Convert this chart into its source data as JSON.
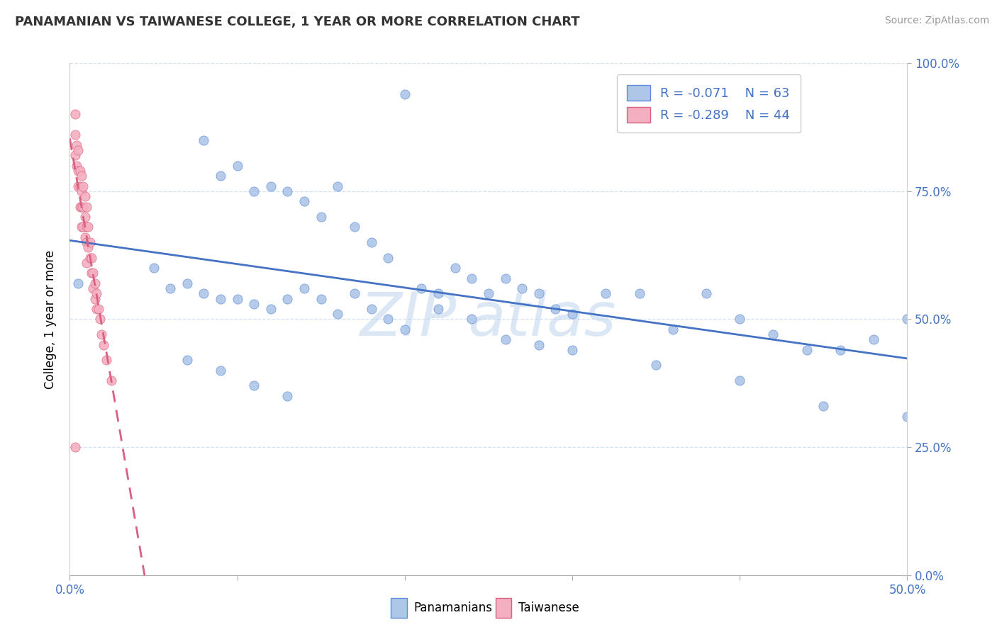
{
  "title": "PANAMANIAN VS TAIWANESE COLLEGE, 1 YEAR OR MORE CORRELATION CHART",
  "source": "Source: ZipAtlas.com",
  "ylabel": "College, 1 year or more",
  "xlim": [
    0.0,
    0.5
  ],
  "ylim": [
    0.0,
    1.0
  ],
  "xticks": [
    0.0,
    0.1,
    0.2,
    0.3,
    0.4,
    0.5
  ],
  "yticks": [
    0.0,
    0.25,
    0.5,
    0.75,
    1.0
  ],
  "color_blue_fill": "#aec6e8",
  "color_blue_edge": "#5b8dd9",
  "color_pink_fill": "#f4b0c0",
  "color_pink_edge": "#d96080",
  "line_blue": "#4472c4",
  "line_pink": "#d96080",
  "legend_R1": "R = -0.071",
  "legend_N1": "N = 63",
  "legend_R2": "R = -0.289",
  "legend_N2": "N = 44",
  "legend_label1": "Panamanians",
  "legend_label2": "Taiwanese",
  "tick_color": "#4472c4",
  "grid_color": "#c8d8f0",
  "watermark_color": "#b8d0ea",
  "pan_x": [
    0.005,
    0.08,
    0.09,
    0.1,
    0.11,
    0.12,
    0.13,
    0.14,
    0.15,
    0.16,
    0.17,
    0.18,
    0.19,
    0.2,
    0.21,
    0.22,
    0.23,
    0.24,
    0.25,
    0.26,
    0.27,
    0.28,
    0.29,
    0.3,
    0.32,
    0.34,
    0.36,
    0.38,
    0.4,
    0.42,
    0.44,
    0.46,
    0.48,
    0.5,
    0.05,
    0.06,
    0.07,
    0.08,
    0.09,
    0.1,
    0.11,
    0.12,
    0.13,
    0.14,
    0.15,
    0.16,
    0.17,
    0.18,
    0.19,
    0.2,
    0.22,
    0.24,
    0.26,
    0.28,
    0.3,
    0.35,
    0.4,
    0.45,
    0.5,
    0.07,
    0.09,
    0.11,
    0.13
  ],
  "pan_y": [
    0.57,
    0.85,
    0.78,
    0.8,
    0.75,
    0.76,
    0.75,
    0.73,
    0.7,
    0.76,
    0.68,
    0.65,
    0.62,
    0.94,
    0.56,
    0.55,
    0.6,
    0.58,
    0.55,
    0.58,
    0.56,
    0.55,
    0.52,
    0.51,
    0.55,
    0.55,
    0.48,
    0.55,
    0.5,
    0.47,
    0.44,
    0.44,
    0.46,
    0.5,
    0.6,
    0.56,
    0.57,
    0.55,
    0.54,
    0.54,
    0.53,
    0.52,
    0.54,
    0.56,
    0.54,
    0.51,
    0.55,
    0.52,
    0.5,
    0.48,
    0.52,
    0.5,
    0.46,
    0.45,
    0.44,
    0.41,
    0.38,
    0.33,
    0.31,
    0.42,
    0.4,
    0.37,
    0.35
  ],
  "tai_x": [
    0.003,
    0.003,
    0.003,
    0.004,
    0.004,
    0.005,
    0.005,
    0.005,
    0.006,
    0.006,
    0.006,
    0.007,
    0.007,
    0.007,
    0.007,
    0.008,
    0.008,
    0.008,
    0.009,
    0.009,
    0.009,
    0.01,
    0.01,
    0.01,
    0.01,
    0.011,
    0.011,
    0.012,
    0.012,
    0.013,
    0.013,
    0.014,
    0.014,
    0.015,
    0.015,
    0.016,
    0.016,
    0.017,
    0.018,
    0.019,
    0.02,
    0.022,
    0.025,
    0.003
  ],
  "tai_y": [
    0.9,
    0.86,
    0.82,
    0.84,
    0.8,
    0.83,
    0.79,
    0.76,
    0.79,
    0.76,
    0.72,
    0.78,
    0.75,
    0.72,
    0.68,
    0.76,
    0.72,
    0.68,
    0.74,
    0.7,
    0.66,
    0.72,
    0.68,
    0.65,
    0.61,
    0.68,
    0.64,
    0.65,
    0.62,
    0.62,
    0.59,
    0.59,
    0.56,
    0.57,
    0.54,
    0.55,
    0.52,
    0.52,
    0.5,
    0.47,
    0.45,
    0.42,
    0.38,
    0.25
  ]
}
